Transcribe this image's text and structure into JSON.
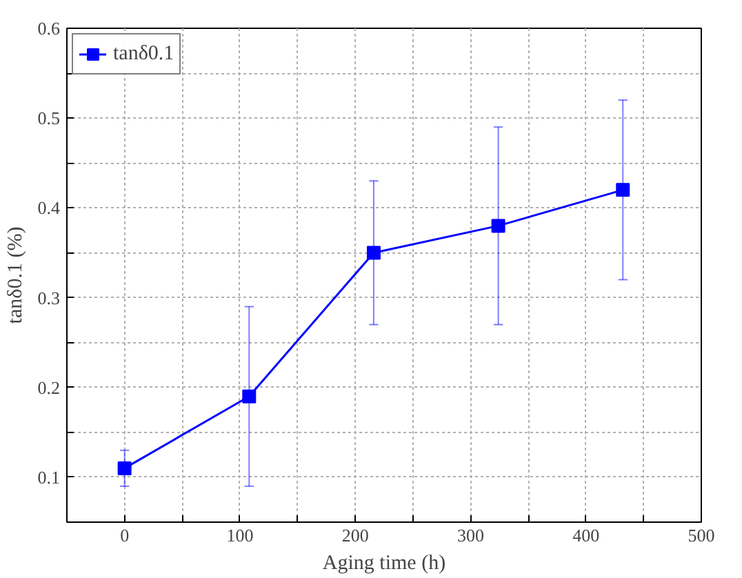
{
  "chart_data": {
    "type": "line",
    "xlabel": "Aging time (h)",
    "ylabel": "tanδ0.1 (%)",
    "x": [
      0,
      108,
      216,
      324,
      432
    ],
    "series": [
      {
        "name": "tanδ0.1",
        "color": "#0000ff",
        "values": [
          0.11,
          0.19,
          0.35,
          0.38,
          0.42
        ],
        "errors": [
          [
            0.09,
            0.13
          ],
          [
            0.09,
            0.29
          ],
          [
            0.27,
            0.43
          ],
          [
            0.27,
            0.49
          ],
          [
            0.32,
            0.52
          ]
        ]
      }
    ],
    "xlim": [
      -50,
      500
    ],
    "xticks": [
      0,
      {
        "value": 50,
        "label": null
      },
      100,
      {
        "value": 150,
        "label": null
      },
      200,
      {
        "value": 250,
        "label": null
      },
      300,
      {
        "value": 350,
        "label": null
      },
      400,
      {
        "value": 450,
        "label": null
      },
      500
    ],
    "ylim": [
      0.05,
      0.6
    ],
    "yticks": [
      0.1,
      {
        "value": 0.15,
        "label": null
      },
      0.2,
      {
        "value": 0.25,
        "label": null
      },
      0.3,
      {
        "value": 0.35,
        "label": null
      },
      0.4,
      {
        "value": 0.45,
        "label": null
      },
      0.5,
      {
        "value": 0.55,
        "label": null
      },
      0.6
    ],
    "grid": true,
    "legend": "top left",
    "marker": "square",
    "line_style": "solid"
  }
}
